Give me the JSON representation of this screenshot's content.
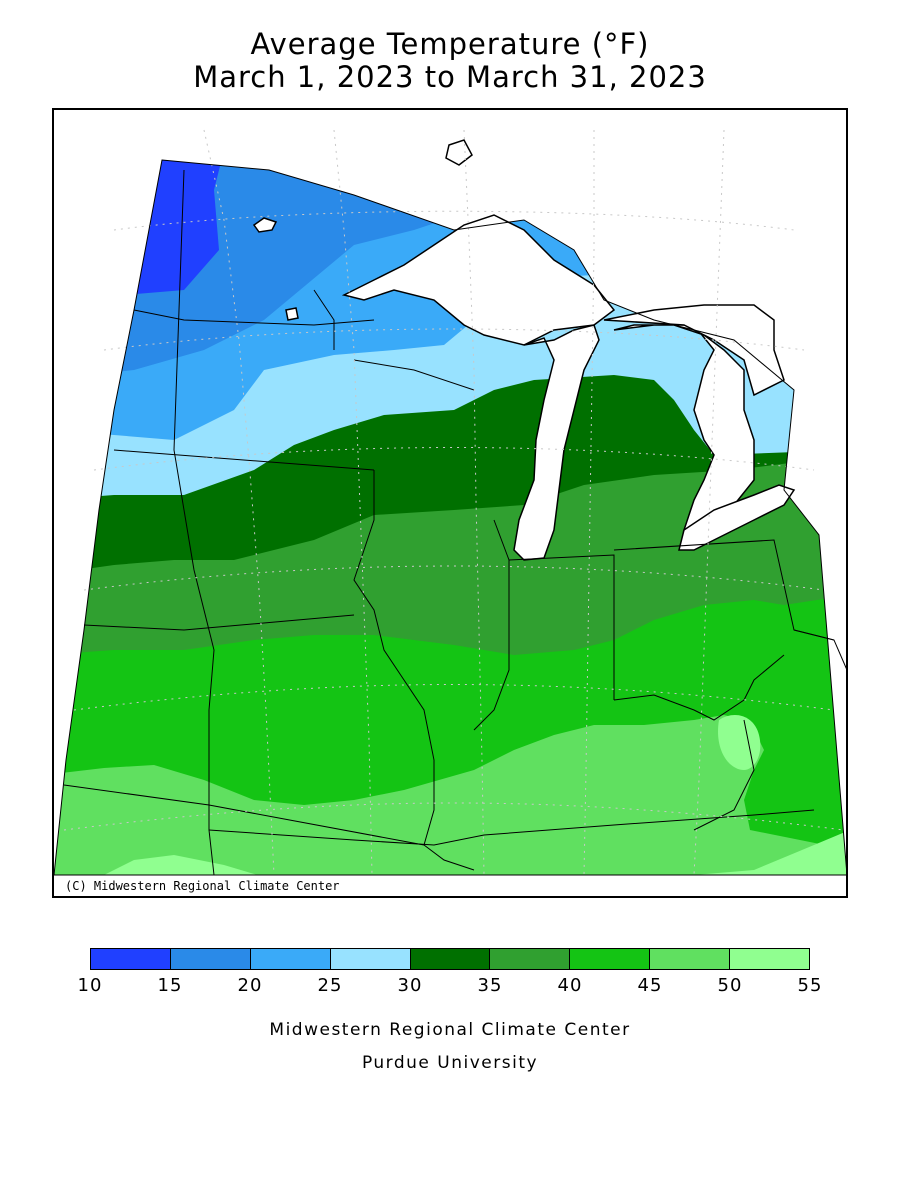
{
  "title": {
    "line1": "Average Temperature (°F)",
    "line2": "March 1, 2023 to March 31, 2023"
  },
  "map": {
    "copyright": "(C) Midwestern Regional Climate Center",
    "lake_color": "#ffffff",
    "outline_color": "#000000"
  },
  "legend": {
    "ticks": [
      "10",
      "15",
      "20",
      "25",
      "30",
      "35",
      "40",
      "45",
      "50",
      "55"
    ],
    "bins": [
      {
        "range": [
          10,
          15
        ],
        "color": "#2040ff"
      },
      {
        "range": [
          15,
          20
        ],
        "color": "#2a8ae8"
      },
      {
        "range": [
          20,
          25
        ],
        "color": "#3aaaf8"
      },
      {
        "range": [
          25,
          30
        ],
        "color": "#98e2ff"
      },
      {
        "range": [
          30,
          35
        ],
        "color": "#007000"
      },
      {
        "range": [
          35,
          40
        ],
        "color": "#30a030"
      },
      {
        "range": [
          40,
          45
        ],
        "color": "#14c414"
      },
      {
        "range": [
          45,
          50
        ],
        "color": "#60e060"
      },
      {
        "range": [
          50,
          55
        ],
        "color": "#90ff90"
      }
    ]
  },
  "credits": {
    "line1": "Midwestern Regional Climate Center",
    "line2": "Purdue University"
  }
}
